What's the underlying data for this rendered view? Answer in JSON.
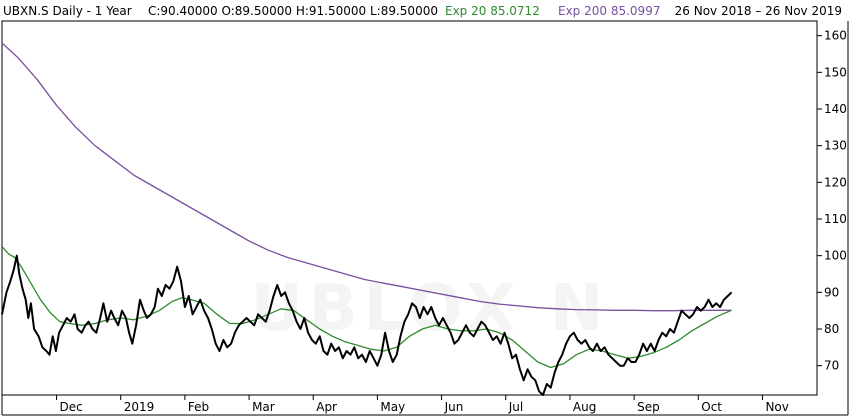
{
  "header": {
    "symbol": "UBXN.S Daily -  1 Year",
    "ohlc": "C:90.40000 O:89.50000 H:91.50000 L:89.50000",
    "exp20_label": "Exp 20 85.0712",
    "exp200_label": "Exp 200 85.0997",
    "date_range": "26 Nov 2018   –   26 Nov 2019"
  },
  "watermark": "UBLOX N",
  "colors": {
    "price": "#000000",
    "exp20": "#2e8b2e",
    "exp200": "#7a4fa0",
    "border": "#000000",
    "background": "#ffffff"
  },
  "chart_data": {
    "type": "line",
    "x_axis": {
      "tick_labels": [
        "Dec",
        "2019",
        "Feb",
        "Mar",
        "Apr",
        "May",
        "Jun",
        "Jul",
        "Aug",
        "Sep",
        "Oct",
        "Nov"
      ],
      "tick_months": [
        1,
        2,
        3,
        4,
        5,
        6,
        7,
        8,
        9,
        10,
        11,
        12
      ],
      "range": [
        0.15,
        12.85
      ]
    },
    "y_axis": {
      "position": "right",
      "ticks": [
        70,
        80,
        90,
        100,
        110,
        120,
        130,
        140,
        150,
        160
      ],
      "range": [
        62,
        164
      ]
    },
    "grid": false,
    "series": [
      {
        "name": "UBXN.S",
        "color": "#000000",
        "points": [
          [
            0.15,
            84
          ],
          [
            0.22,
            90
          ],
          [
            0.28,
            93
          ],
          [
            0.33,
            96
          ],
          [
            0.38,
            100
          ],
          [
            0.42,
            95
          ],
          [
            0.47,
            91
          ],
          [
            0.52,
            88
          ],
          [
            0.56,
            83
          ],
          [
            0.6,
            87
          ],
          [
            0.65,
            80
          ],
          [
            0.72,
            78
          ],
          [
            0.78,
            75
          ],
          [
            0.84,
            74
          ],
          [
            0.89,
            73
          ],
          [
            0.94,
            78
          ],
          [
            0.99,
            74
          ],
          [
            1.04,
            79
          ],
          [
            1.1,
            81
          ],
          [
            1.16,
            83
          ],
          [
            1.22,
            82
          ],
          [
            1.28,
            84
          ],
          [
            1.33,
            80
          ],
          [
            1.39,
            79
          ],
          [
            1.45,
            81
          ],
          [
            1.5,
            82
          ],
          [
            1.56,
            80
          ],
          [
            1.62,
            79
          ],
          [
            1.68,
            83
          ],
          [
            1.73,
            87
          ],
          [
            1.79,
            82
          ],
          [
            1.85,
            85
          ],
          [
            1.9,
            83
          ],
          [
            1.96,
            81
          ],
          [
            2.02,
            85
          ],
          [
            2.08,
            83
          ],
          [
            2.13,
            79
          ],
          [
            2.18,
            76
          ],
          [
            2.24,
            81
          ],
          [
            2.3,
            88
          ],
          [
            2.36,
            85
          ],
          [
            2.41,
            83
          ],
          [
            2.47,
            84
          ],
          [
            2.53,
            86
          ],
          [
            2.58,
            91
          ],
          [
            2.64,
            89
          ],
          [
            2.7,
            92
          ],
          [
            2.76,
            91
          ],
          [
            2.82,
            93
          ],
          [
            2.88,
            97
          ],
          [
            2.94,
            93
          ],
          [
            3.0,
            86
          ],
          [
            3.06,
            89
          ],
          [
            3.12,
            84
          ],
          [
            3.18,
            86
          ],
          [
            3.24,
            88
          ],
          [
            3.3,
            85
          ],
          [
            3.36,
            83
          ],
          [
            3.42,
            80
          ],
          [
            3.48,
            76
          ],
          [
            3.54,
            74
          ],
          [
            3.6,
            77
          ],
          [
            3.66,
            75
          ],
          [
            3.72,
            76
          ],
          [
            3.78,
            79
          ],
          [
            3.84,
            81
          ],
          [
            3.9,
            82
          ],
          [
            3.96,
            83
          ],
          [
            4.02,
            82
          ],
          [
            4.08,
            81
          ],
          [
            4.14,
            84
          ],
          [
            4.2,
            83
          ],
          [
            4.26,
            82
          ],
          [
            4.32,
            85
          ],
          [
            4.38,
            89
          ],
          [
            4.44,
            92
          ],
          [
            4.5,
            89
          ],
          [
            4.56,
            90
          ],
          [
            4.62,
            87
          ],
          [
            4.68,
            85
          ],
          [
            4.74,
            82
          ],
          [
            4.8,
            80
          ],
          [
            4.86,
            83
          ],
          [
            4.92,
            79
          ],
          [
            4.98,
            77
          ],
          [
            5.04,
            76
          ],
          [
            5.1,
            78
          ],
          [
            5.16,
            74
          ],
          [
            5.22,
            73
          ],
          [
            5.28,
            76
          ],
          [
            5.34,
            74
          ],
          [
            5.4,
            75
          ],
          [
            5.46,
            72
          ],
          [
            5.52,
            74
          ],
          [
            5.58,
            73
          ],
          [
            5.64,
            75
          ],
          [
            5.7,
            72
          ],
          [
            5.76,
            73
          ],
          [
            5.82,
            71
          ],
          [
            5.88,
            74
          ],
          [
            5.94,
            72
          ],
          [
            6.0,
            70
          ],
          [
            6.06,
            73
          ],
          [
            6.12,
            79
          ],
          [
            6.18,
            74
          ],
          [
            6.24,
            71
          ],
          [
            6.3,
            73
          ],
          [
            6.36,
            78
          ],
          [
            6.42,
            82
          ],
          [
            6.48,
            84
          ],
          [
            6.54,
            87
          ],
          [
            6.6,
            86
          ],
          [
            6.66,
            83
          ],
          [
            6.72,
            86
          ],
          [
            6.78,
            84
          ],
          [
            6.84,
            86
          ],
          [
            6.9,
            83
          ],
          [
            6.96,
            81
          ],
          [
            7.02,
            83
          ],
          [
            7.08,
            81
          ],
          [
            7.14,
            79
          ],
          [
            7.2,
            76
          ],
          [
            7.26,
            77
          ],
          [
            7.32,
            79
          ],
          [
            7.38,
            81
          ],
          [
            7.44,
            79
          ],
          [
            7.5,
            78
          ],
          [
            7.56,
            80
          ],
          [
            7.62,
            82
          ],
          [
            7.68,
            81
          ],
          [
            7.74,
            79
          ],
          [
            7.8,
            77
          ],
          [
            7.86,
            78
          ],
          [
            7.92,
            76
          ],
          [
            7.98,
            79
          ],
          [
            8.04,
            76
          ],
          [
            8.1,
            72
          ],
          [
            8.16,
            73
          ],
          [
            8.22,
            69
          ],
          [
            8.28,
            66
          ],
          [
            8.34,
            69
          ],
          [
            8.4,
            67
          ],
          [
            8.46,
            66
          ],
          [
            8.52,
            63
          ],
          [
            8.58,
            62
          ],
          [
            8.64,
            65
          ],
          [
            8.7,
            64
          ],
          [
            8.76,
            68
          ],
          [
            8.82,
            71
          ],
          [
            8.88,
            73
          ],
          [
            8.94,
            76
          ],
          [
            9.0,
            78
          ],
          [
            9.06,
            79
          ],
          [
            9.12,
            77
          ],
          [
            9.18,
            76
          ],
          [
            9.24,
            77
          ],
          [
            9.3,
            75
          ],
          [
            9.36,
            74
          ],
          [
            9.42,
            76
          ],
          [
            9.48,
            74
          ],
          [
            9.54,
            75
          ],
          [
            9.6,
            73
          ],
          [
            9.66,
            72
          ],
          [
            9.72,
            71
          ],
          [
            9.78,
            70
          ],
          [
            9.84,
            70
          ],
          [
            9.9,
            72
          ],
          [
            9.96,
            71
          ],
          [
            10.02,
            71
          ],
          [
            10.08,
            73
          ],
          [
            10.14,
            76
          ],
          [
            10.2,
            74
          ],
          [
            10.26,
            76
          ],
          [
            10.32,
            74
          ],
          [
            10.38,
            77
          ],
          [
            10.44,
            79
          ],
          [
            10.5,
            78
          ],
          [
            10.56,
            80
          ],
          [
            10.62,
            79
          ],
          [
            10.68,
            82
          ],
          [
            10.74,
            85
          ],
          [
            10.8,
            84
          ],
          [
            10.86,
            83
          ],
          [
            10.92,
            84
          ],
          [
            10.98,
            86
          ],
          [
            11.04,
            85
          ],
          [
            11.1,
            86
          ],
          [
            11.16,
            88
          ],
          [
            11.22,
            86
          ],
          [
            11.28,
            87
          ],
          [
            11.34,
            86
          ],
          [
            11.4,
            88
          ],
          [
            11.46,
            89
          ],
          [
            11.52,
            90
          ]
        ]
      },
      {
        "name": "Exp 20",
        "color": "#2e8b2e",
        "points": [
          [
            0.15,
            102.5
          ],
          [
            0.25,
            100.5
          ],
          [
            0.35,
            99.5
          ],
          [
            0.45,
            97
          ],
          [
            0.55,
            94
          ],
          [
            0.65,
            91
          ],
          [
            0.75,
            88
          ],
          [
            0.9,
            84.5
          ],
          [
            1.05,
            82
          ],
          [
            1.2,
            81.5
          ],
          [
            1.4,
            81
          ],
          [
            1.6,
            81.5
          ],
          [
            1.8,
            82.5
          ],
          [
            2.0,
            83
          ],
          [
            2.2,
            82.5
          ],
          [
            2.4,
            83.5
          ],
          [
            2.6,
            85
          ],
          [
            2.8,
            87.5
          ],
          [
            2.95,
            88.5
          ],
          [
            3.1,
            88
          ],
          [
            3.3,
            87
          ],
          [
            3.5,
            84
          ],
          [
            3.7,
            81.5
          ],
          [
            3.9,
            81.5
          ],
          [
            4.1,
            82.5
          ],
          [
            4.3,
            84
          ],
          [
            4.5,
            85.5
          ],
          [
            4.7,
            85
          ],
          [
            4.9,
            82.5
          ],
          [
            5.1,
            80
          ],
          [
            5.3,
            78
          ],
          [
            5.5,
            76.5
          ],
          [
            5.7,
            75.5
          ],
          [
            5.9,
            74.5
          ],
          [
            6.1,
            74
          ],
          [
            6.3,
            75
          ],
          [
            6.5,
            78
          ],
          [
            6.7,
            80
          ],
          [
            6.9,
            81
          ],
          [
            7.1,
            80
          ],
          [
            7.3,
            79.5
          ],
          [
            7.5,
            79.5
          ],
          [
            7.7,
            80
          ],
          [
            7.9,
            79
          ],
          [
            8.1,
            77
          ],
          [
            8.3,
            74
          ],
          [
            8.5,
            71
          ],
          [
            8.7,
            69.5
          ],
          [
            8.9,
            70.5
          ],
          [
            9.1,
            73
          ],
          [
            9.3,
            74.5
          ],
          [
            9.5,
            74
          ],
          [
            9.7,
            73
          ],
          [
            9.9,
            72
          ],
          [
            10.1,
            72.5
          ],
          [
            10.3,
            73.5
          ],
          [
            10.5,
            75
          ],
          [
            10.7,
            77
          ],
          [
            10.9,
            79.5
          ],
          [
            11.1,
            81.5
          ],
          [
            11.3,
            83.5
          ],
          [
            11.52,
            85.1
          ]
        ]
      },
      {
        "name": "Exp 200",
        "color": "#7a4fa0",
        "points": [
          [
            0.15,
            158
          ],
          [
            0.4,
            154
          ],
          [
            0.7,
            148
          ],
          [
            1.0,
            141
          ],
          [
            1.3,
            135
          ],
          [
            1.6,
            130
          ],
          [
            1.9,
            126
          ],
          [
            2.2,
            122
          ],
          [
            2.5,
            119
          ],
          [
            2.8,
            116
          ],
          [
            3.1,
            113
          ],
          [
            3.4,
            110
          ],
          [
            3.7,
            107
          ],
          [
            4.0,
            104
          ],
          [
            4.3,
            101.5
          ],
          [
            4.6,
            99.5
          ],
          [
            4.9,
            98
          ],
          [
            5.2,
            96.5
          ],
          [
            5.5,
            95
          ],
          [
            5.8,
            93.5
          ],
          [
            6.1,
            92.5
          ],
          [
            6.4,
            91.5
          ],
          [
            6.7,
            90.5
          ],
          [
            7.0,
            89.5
          ],
          [
            7.3,
            88.5
          ],
          [
            7.6,
            87.5
          ],
          [
            7.9,
            86.8
          ],
          [
            8.2,
            86.3
          ],
          [
            8.5,
            85.8
          ],
          [
            8.8,
            85.5
          ],
          [
            9.1,
            85.3
          ],
          [
            9.4,
            85.2
          ],
          [
            9.7,
            85.1
          ],
          [
            10.0,
            85.1
          ],
          [
            10.3,
            85.0
          ],
          [
            10.6,
            85.0
          ],
          [
            10.9,
            85.1
          ],
          [
            11.2,
            85.1
          ],
          [
            11.52,
            85.1
          ]
        ]
      }
    ]
  }
}
